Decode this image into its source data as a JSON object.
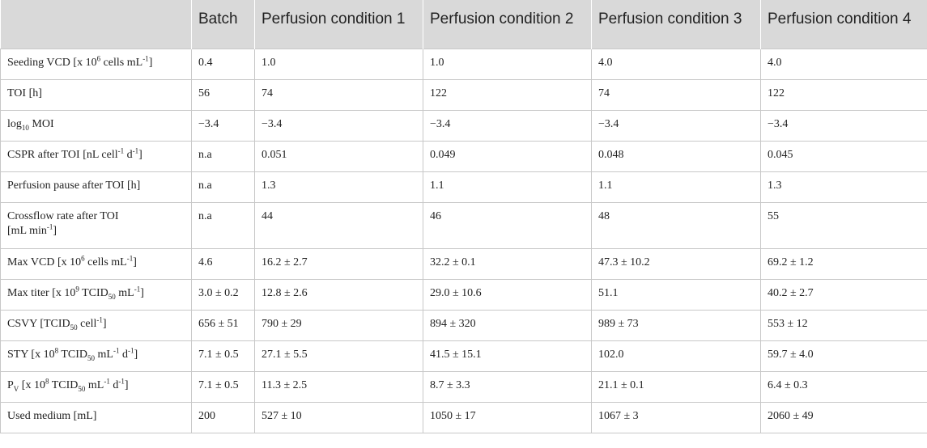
{
  "header": [
    "",
    "Batch",
    "Perfusion condition 1",
    "Perfusion condition 2",
    "Perfusion condition 3",
    "Perfusion condition 4"
  ],
  "labels": {
    "seeding_vcd": {
      "pre": "Seeding VCD [x 10",
      "sup1": "6",
      "mid": " cells mL",
      "sup2": "-1",
      "post": "]"
    },
    "toi": "TOI [h]",
    "log_moi": {
      "pre": "log",
      "sub": "10",
      "post": " MOI"
    },
    "cspr": {
      "pre": "CSPR after TOI [nL cell",
      "sup1": "-1",
      "mid": " d",
      "sup2": "-1",
      "post": "]"
    },
    "perfusion_pause": "Perfusion pause after TOI [h]",
    "crossflow": {
      "line1": "Crossflow rate after TOI",
      "line2pre": "[mL min",
      "sup": "-1",
      "line2post": "]"
    },
    "max_vcd": {
      "pre": "Max VCD [x 10",
      "sup1": "6",
      "mid": " cells mL",
      "sup2": "-1",
      "post": "]"
    },
    "max_titer": {
      "pre": "Max titer [x 10",
      "sup1": "9",
      "mid": " TCID",
      "sub": "50",
      "mid2": " mL",
      "sup2": "-1",
      "post": "]"
    },
    "csvy": {
      "pre": "CSVY [TCID",
      "sub": "50",
      "mid": " cell",
      "sup": "-1",
      "post": "]"
    },
    "sty": {
      "pre": "STY [x 10",
      "sup1": "8",
      "mid": " TCID",
      "sub": "50",
      "mid2": " mL",
      "sup2": "-1",
      "mid3": " d",
      "sup3": "-1",
      "post": "]"
    },
    "pv": {
      "pre": "P",
      "subv": "V",
      "pre2": " [x 10",
      "sup1": "8",
      "mid": " TCID",
      "sub": "50",
      "mid2": " mL",
      "sup2": "-1",
      "mid3": " d",
      "sup3": "-1",
      "post": "]"
    },
    "used_medium": "Used medium [mL]"
  },
  "rows": {
    "seeding_vcd": [
      "0.4",
      "1.0",
      "1.0",
      "4.0",
      "4.0"
    ],
    "toi": [
      "56",
      "74",
      "122",
      "74",
      "122"
    ],
    "log_moi": [
      "−3.4",
      "−3.4",
      "−3.4",
      "−3.4",
      "−3.4"
    ],
    "cspr": [
      "n.a",
      "0.051",
      "0.049",
      "0.048",
      "0.045"
    ],
    "perfusion_pause": [
      "n.a",
      "1.3",
      "1.1",
      "1.1",
      "1.3"
    ],
    "crossflow": [
      "n.a",
      "44",
      "46",
      "48",
      "55"
    ],
    "max_vcd": [
      "4.6",
      "16.2 ± 2.7",
      "32.2 ± 0.1",
      "47.3 ± 10.2",
      "69.2 ± 1.2"
    ],
    "max_titer": [
      "3.0 ± 0.2",
      "12.8 ± 2.6",
      "29.0 ± 10.6",
      "51.1",
      "40.2 ± 2.7"
    ],
    "csvy": [
      "656 ± 51",
      "790 ± 29",
      "894 ± 320",
      "989 ± 73",
      "553 ± 12"
    ],
    "sty": [
      "7.1 ± 0.5",
      "27.1 ± 5.5",
      "41.5 ± 15.1",
      "102.0",
      "59.7 ± 4.0"
    ],
    "pv": [
      "7.1 ± 0.5",
      "11.3 ± 2.5",
      "8.7 ± 3.3",
      "21.1 ± 0.1",
      "6.4 ± 0.3"
    ],
    "used_medium": [
      "200",
      "527 ± 10",
      "1050 ± 17",
      "1067 ± 3",
      "2060 ± 49"
    ]
  }
}
